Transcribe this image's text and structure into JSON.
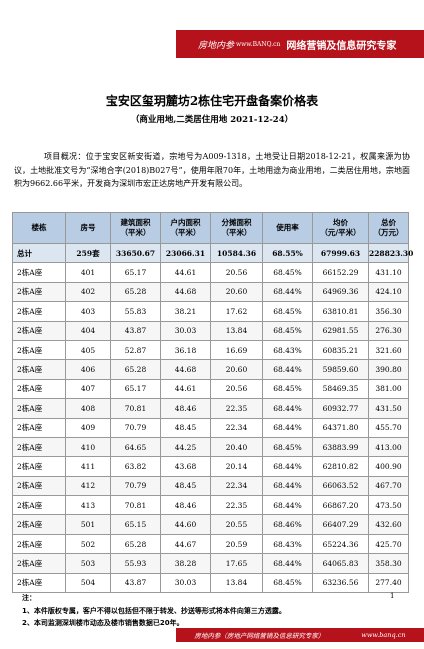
{
  "header": {
    "brand": "房地内参",
    "site": "www.BANQ.cn",
    "slogan": "网络营销及信息研究专家"
  },
  "title": "宝安区玺玥麓坊2栋住宅开盘备案价格表",
  "subtitle": "（商业用地,二类居住用地   2021-12-24）",
  "overview": "项目概况：位于宝安区新安街道，宗地号为A009-1318，土地受让日期2018-12-21，权属来源为协议，土地批准文号为“深地合字(2018)B027号”，使用年限70年，土地用途为商业用地，二类居住用地，宗地面积为9662.66平米，开发商为深圳市宏正达房地产开发有限公司。",
  "table": {
    "columns": [
      [
        "楼栋"
      ],
      [
        "房号"
      ],
      [
        "建筑面积",
        "（平米）"
      ],
      [
        "户内面积",
        "（平米）"
      ],
      [
        "分摊面积",
        "（平米）"
      ],
      [
        "使用率"
      ],
      [
        "均价",
        "（元/平米）"
      ],
      [
        "总价",
        "（万元）"
      ]
    ],
    "total": [
      "总计",
      "259套",
      "33650.67",
      "23066.31",
      "10584.36",
      "68.55%",
      "67999.63",
      "228823.30"
    ],
    "rows": [
      [
        "2栋A座",
        "401",
        "65.17",
        "44.61",
        "20.56",
        "68.45%",
        "66152.29",
        "431.10"
      ],
      [
        "2栋A座",
        "402",
        "65.28",
        "44.68",
        "20.60",
        "68.44%",
        "64969.36",
        "424.10"
      ],
      [
        "2栋A座",
        "403",
        "55.83",
        "38.21",
        "17.62",
        "68.45%",
        "63810.81",
        "356.30"
      ],
      [
        "2栋A座",
        "404",
        "43.87",
        "30.03",
        "13.84",
        "68.45%",
        "62981.55",
        "276.30"
      ],
      [
        "2栋A座",
        "405",
        "52.87",
        "36.18",
        "16.69",
        "68.43%",
        "60835.21",
        "321.60"
      ],
      [
        "2栋A座",
        "406",
        "65.28",
        "44.68",
        "20.60",
        "68.44%",
        "59859.60",
        "390.80"
      ],
      [
        "2栋A座",
        "407",
        "65.17",
        "44.61",
        "20.56",
        "68.45%",
        "58469.35",
        "381.00"
      ],
      [
        "2栋A座",
        "408",
        "70.81",
        "48.46",
        "22.35",
        "68.44%",
        "60932.77",
        "431.50"
      ],
      [
        "2栋A座",
        "409",
        "70.79",
        "48.45",
        "22.34",
        "68.44%",
        "64371.80",
        "455.70"
      ],
      [
        "2栋A座",
        "410",
        "64.65",
        "44.25",
        "20.40",
        "68.45%",
        "63883.99",
        "413.00"
      ],
      [
        "2栋A座",
        "411",
        "63.82",
        "43.68",
        "20.14",
        "68.44%",
        "62810.82",
        "400.90"
      ],
      [
        "2栋A座",
        "412",
        "70.79",
        "48.45",
        "22.34",
        "68.44%",
        "66063.52",
        "467.70"
      ],
      [
        "2栋A座",
        "413",
        "70.81",
        "48.46",
        "22.35",
        "68.44%",
        "66867.20",
        "473.50"
      ],
      [
        "2栋A座",
        "501",
        "65.15",
        "44.60",
        "20.55",
        "68.46%",
        "66407.29",
        "432.60"
      ],
      [
        "2栋A座",
        "502",
        "65.28",
        "44.67",
        "20.59",
        "68.43%",
        "65224.36",
        "425.70"
      ],
      [
        "2栋A座",
        "503",
        "55.93",
        "38.28",
        "17.65",
        "68.44%",
        "64065.83",
        "358.30"
      ],
      [
        "2栋A座",
        "504",
        "43.87",
        "30.03",
        "13.84",
        "68.45%",
        "63236.56",
        "277.40"
      ]
    ]
  },
  "notes": {
    "label": "注：",
    "items": [
      "1、本件版权专属，客户不得以包括但不限于转发、抄送等形式将本件向第三方透露。",
      "2、本司监测深圳楼市动态及楼市销售数据已20年。"
    ]
  },
  "page_number": "1",
  "footer": {
    "brand": "房地内参（房地产网络营销及信息研究专家）",
    "site": "www.banq.cn"
  }
}
